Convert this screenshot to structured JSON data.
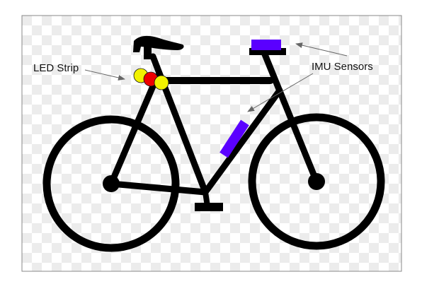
{
  "labels": {
    "led_strip": "LED Strip",
    "imu_sensors": "IMU Sensors"
  },
  "colors": {
    "frame": "#000000",
    "imu_sensor": "#5a00ff",
    "led_yellow": "#f2f200",
    "led_red": "#ee0000",
    "pointer": "#666666",
    "checker_light": "#ffffff",
    "checker_dark": "#ececec",
    "border": "#888888"
  },
  "icons": {
    "bicycle": "bicycle-icon",
    "leds": "led-icon",
    "sensors": "imu-sensor-icon"
  }
}
